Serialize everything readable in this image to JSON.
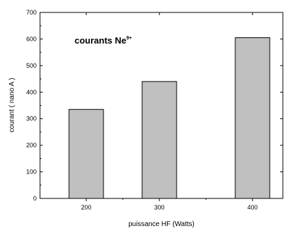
{
  "chart_data": {
    "type": "bar",
    "title": "courants Ne",
    "title_superscript": "9+",
    "xlabel": "puissance HF (Watts)",
    "ylabel": "courant ( nano A )",
    "categories": [
      "200",
      "300",
      "400"
    ],
    "values": [
      335,
      440,
      605
    ],
    "ylim": [
      0,
      700
    ],
    "yticks": [
      "0",
      "100",
      "200",
      "300",
      "400",
      "500",
      "600",
      "700"
    ],
    "bar_color": "#c0c0c0",
    "grid": false,
    "legend": "none"
  }
}
